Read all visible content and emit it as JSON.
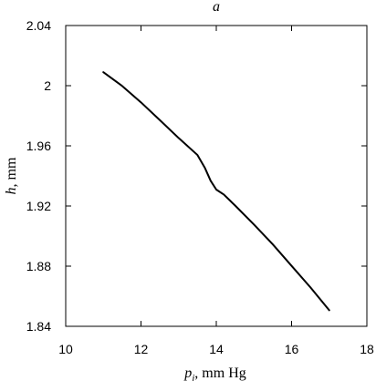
{
  "chart_data": {
    "type": "line",
    "title": "a",
    "xlabel": {
      "symbol": "p",
      "subscript": "j",
      "unit": ", mm Hg"
    },
    "ylabel": {
      "symbol": "h",
      "unit": ", mm"
    },
    "xlim": [
      10,
      18
    ],
    "ylim": [
      1.84,
      2.04
    ],
    "xticks": [
      10,
      12,
      14,
      16,
      18
    ],
    "yticks": [
      1.84,
      1.88,
      1.92,
      1.96,
      2.0,
      2.04
    ],
    "xtick_labels": [
      "10",
      "12",
      "14",
      "16",
      "18"
    ],
    "ytick_labels": [
      "1.84",
      "1.88",
      "1.92",
      "1.96",
      "2",
      "2.04"
    ],
    "grid": false,
    "series": [
      {
        "color": "#000000",
        "x": [
          11.0,
          11.5,
          12.0,
          12.5,
          13.0,
          13.5,
          13.7,
          13.85,
          14.0,
          14.2,
          14.5,
          15.0,
          15.5,
          16.0,
          16.5,
          17.0
        ],
        "y": [
          2.009,
          1.9998,
          1.9889,
          1.9771,
          1.9652,
          1.9539,
          1.9452,
          1.9368,
          1.9309,
          1.9276,
          1.9203,
          1.9077,
          1.8945,
          1.8802,
          1.8659,
          1.8507
        ]
      }
    ]
  }
}
